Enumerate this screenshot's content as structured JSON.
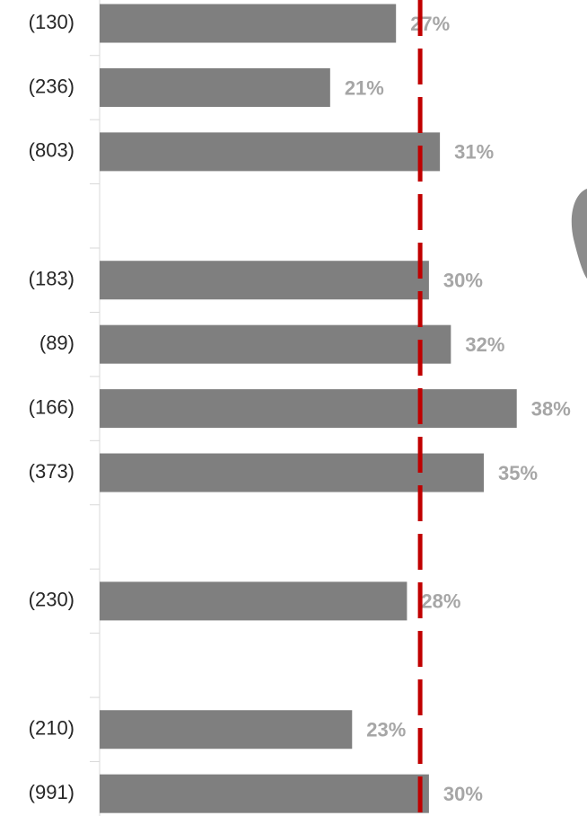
{
  "chart_data": {
    "type": "barh",
    "categories": [
      "(130)",
      "(236)",
      "(803)",
      null,
      "(183)",
      "(89)",
      "(166)",
      "(373)",
      null,
      "(230)",
      null,
      "(210)",
      "(991)"
    ],
    "values": [
      27,
      21,
      31,
      null,
      30,
      32,
      38,
      35,
      null,
      28,
      null,
      23,
      30
    ],
    "value_labels": [
      "27%",
      "21%",
      "31%",
      null,
      "30%",
      "32%",
      "38%",
      "35%",
      null,
      "28%",
      null,
      "23%",
      "30%"
    ],
    "color": "#7f7f7f",
    "xlim": [
      0,
      44.4
    ],
    "reference_line": {
      "value": 29.2,
      "color": "#c00000"
    }
  }
}
